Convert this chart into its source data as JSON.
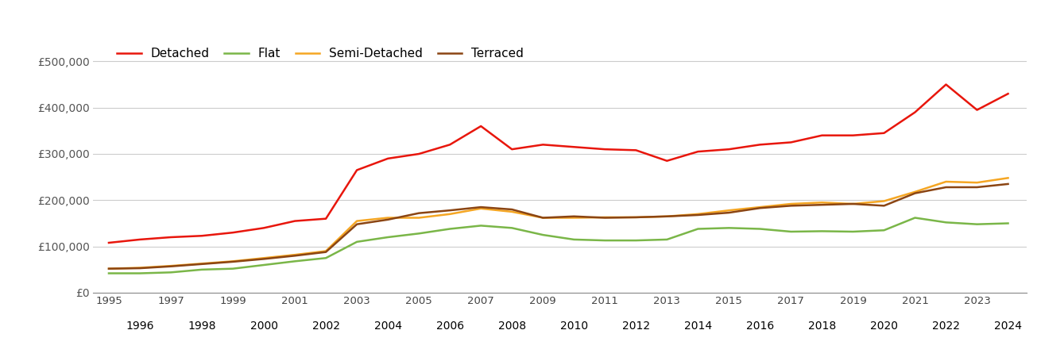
{
  "years": [
    1995,
    1996,
    1997,
    1998,
    1999,
    2000,
    2001,
    2002,
    2003,
    2004,
    2005,
    2006,
    2007,
    2008,
    2009,
    2010,
    2011,
    2012,
    2013,
    2014,
    2015,
    2016,
    2017,
    2018,
    2019,
    2020,
    2021,
    2022,
    2023,
    2024
  ],
  "detached": [
    108000,
    115000,
    120000,
    123000,
    130000,
    140000,
    155000,
    160000,
    265000,
    290000,
    300000,
    320000,
    360000,
    310000,
    320000,
    315000,
    310000,
    308000,
    285000,
    305000,
    310000,
    320000,
    325000,
    340000,
    340000,
    345000,
    390000,
    450000,
    395000,
    430000
  ],
  "flat": [
    42000,
    42000,
    44000,
    50000,
    52000,
    60000,
    68000,
    75000,
    110000,
    120000,
    128000,
    138000,
    145000,
    140000,
    125000,
    115000,
    113000,
    113000,
    115000,
    138000,
    140000,
    138000,
    132000,
    133000,
    132000,
    135000,
    162000,
    152000,
    148000,
    150000
  ],
  "semi_detached": [
    52000,
    54000,
    58000,
    63000,
    68000,
    75000,
    82000,
    90000,
    155000,
    162000,
    162000,
    170000,
    182000,
    175000,
    162000,
    162000,
    163000,
    163000,
    165000,
    170000,
    178000,
    185000,
    192000,
    195000,
    192000,
    198000,
    218000,
    240000,
    238000,
    248000
  ],
  "terraced": [
    52000,
    53000,
    57000,
    62000,
    67000,
    73000,
    80000,
    88000,
    148000,
    158000,
    172000,
    178000,
    185000,
    180000,
    162000,
    165000,
    162000,
    163000,
    165000,
    168000,
    173000,
    183000,
    188000,
    190000,
    192000,
    188000,
    215000,
    228000,
    228000,
    235000
  ],
  "colors": {
    "detached": "#e8160c",
    "flat": "#7ab648",
    "semi_detached": "#f5a623",
    "terraced": "#8b4513"
  },
  "ylim": [
    0,
    540000
  ],
  "yticks": [
    0,
    100000,
    200000,
    300000,
    400000,
    500000
  ],
  "ytick_labels": [
    "£0",
    "£100,000",
    "£200,000",
    "£300,000",
    "£400,000",
    "£500,000"
  ],
  "xticks_odd": [
    1995,
    1997,
    1999,
    2001,
    2003,
    2005,
    2007,
    2009,
    2011,
    2013,
    2015,
    2017,
    2019,
    2021,
    2023
  ],
  "xticks_even": [
    1996,
    1998,
    2000,
    2002,
    2004,
    2006,
    2008,
    2010,
    2012,
    2014,
    2016,
    2018,
    2020,
    2022,
    2024
  ],
  "line_width": 1.8,
  "background_color": "#ffffff",
  "grid_color": "#cccccc",
  "xlim": [
    1994.5,
    2024.6
  ]
}
